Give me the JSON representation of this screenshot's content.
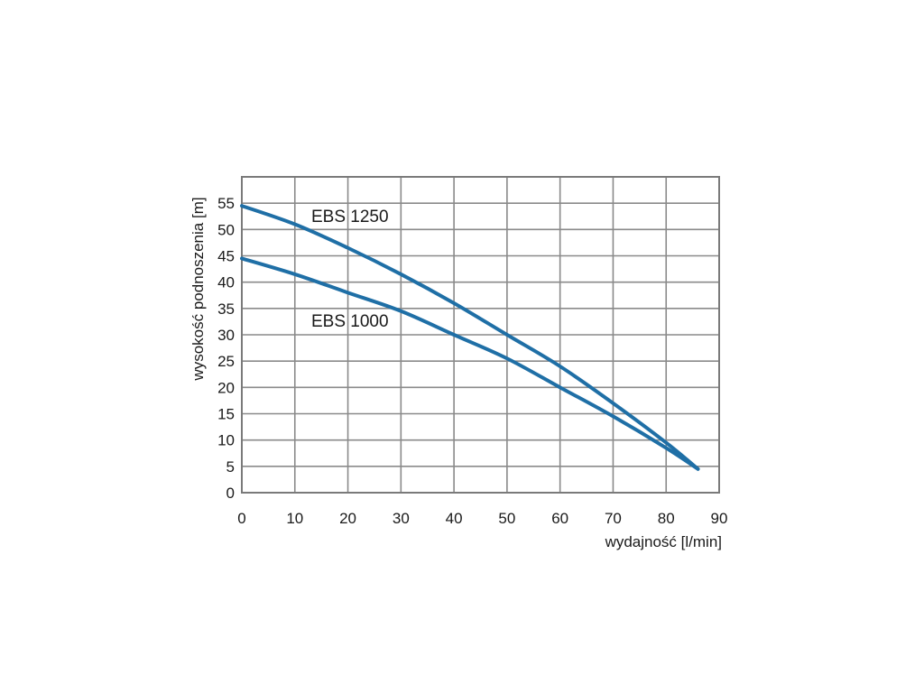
{
  "chart_data": {
    "type": "line",
    "xlabel": "wydajność  [l/min]",
    "ylabel": "wysokość podnoszenia [m]",
    "xlim": [
      0,
      90
    ],
    "ylim": [
      0,
      60
    ],
    "x_ticks": [
      "0",
      "10",
      "20",
      "30",
      "40",
      "50",
      "60",
      "70",
      "80",
      "90"
    ],
    "y_ticks": [
      "0",
      "5",
      "10",
      "15",
      "20",
      "25",
      "30",
      "35",
      "40",
      "45",
      "50",
      "55"
    ],
    "grid": true,
    "series": [
      {
        "name": "EBS 1250",
        "color": "#1f6fa6",
        "x": [
          0,
          10,
          20,
          30,
          40,
          50,
          60,
          70,
          80,
          86
        ],
        "y": [
          54.5,
          51,
          46.5,
          41.5,
          36,
          30,
          24,
          17,
          9.5,
          4.5
        ]
      },
      {
        "name": "EBS 1000",
        "color": "#1f6fa6",
        "x": [
          0,
          10,
          20,
          30,
          40,
          50,
          60,
          70,
          80,
          86
        ],
        "y": [
          44.5,
          41.5,
          38,
          34.5,
          30,
          25.5,
          20,
          14.5,
          8.5,
          4.5
        ]
      }
    ]
  }
}
